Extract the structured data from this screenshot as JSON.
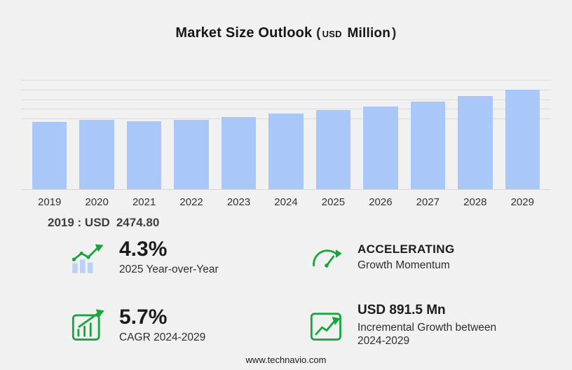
{
  "title": {
    "main": "Market Size Outlook",
    "paren_open": "(",
    "currency": "USD",
    "unit": "Million",
    "paren_close": ")"
  },
  "chart_data": {
    "type": "bar",
    "title": "Market Size Outlook (USD Million)",
    "categories": [
      "2019",
      "2020",
      "2021",
      "2022",
      "2023",
      "2024",
      "2025",
      "2026",
      "2027",
      "2028",
      "2029"
    ],
    "values": [
      2474.8,
      2555,
      2505,
      2570,
      2655,
      2792.3,
      2912.4,
      3058.0,
      3235.4,
      3445.7,
      3683.8
    ],
    "xlabel": "",
    "ylabel": "",
    "ylim": [
      0,
      4400
    ],
    "gridline_values": [
      2600,
      2950,
      3300,
      3650,
      4000
    ],
    "legend": "none",
    "grid": "horizontal"
  },
  "annotation": {
    "label": "2019 : USD",
    "value": "2474.80"
  },
  "stats": [
    {
      "icon": "yoy-growth-icon",
      "value": "4.3%",
      "caption": "2025 Year-over-Year"
    },
    {
      "icon": "speedometer-icon",
      "value": "ACCELERATING",
      "caption": "Growth Momentum"
    },
    {
      "icon": "cagr-chart-icon",
      "value": "5.7%",
      "caption": "CAGR 2024-2029"
    },
    {
      "icon": "incremental-growth-icon",
      "value": "USD 891.5 Mn",
      "caption": "Incremental Growth between 2024-2029"
    }
  ],
  "footer": {
    "url": "www.technavio.com"
  },
  "colors": {
    "bar": "#a9c7f8",
    "green": "#17a63c",
    "background": "#f1f1f2"
  }
}
